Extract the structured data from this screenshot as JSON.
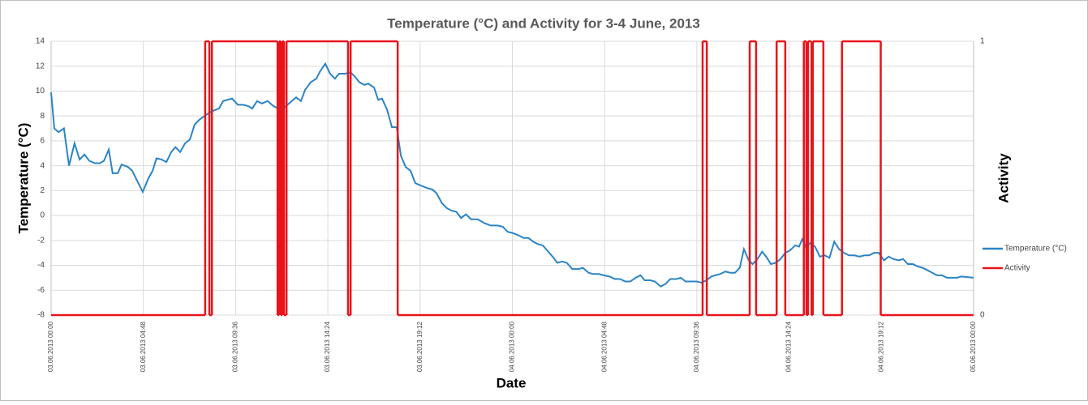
{
  "chart_data": {
    "type": "line",
    "title": "Temperature (°C) and Activity for 3-4 June, 2013",
    "xlabel": "Date",
    "ylabel": "Temperature (°C)",
    "y2label": "Activity",
    "xlim": [
      "03.06.2013 00:00",
      "05.06.2013 00:00"
    ],
    "xticks": [
      "03.06.2013 00:00",
      "03.06.2013 04:48",
      "03.06.2013 09:36",
      "03.06.2013 14:24",
      "03.06.2013 19:12",
      "04.06.2013 00:00",
      "04.06.2013 04:48",
      "04.06.2013 09:36",
      "04.06.2013 14:24",
      "04.06.2013 19:12",
      "05.06.2013 00:00"
    ],
    "ylim": [
      -8,
      14
    ],
    "yticks": [
      -8,
      -6,
      -4,
      -2,
      0,
      2,
      4,
      6,
      8,
      10,
      12,
      14
    ],
    "y2lim": [
      0,
      1
    ],
    "y2ticks": [
      0,
      1
    ],
    "grid": true,
    "legend": "right",
    "series": [
      {
        "name": "Temperature (°C)",
        "color": "#2a84c6",
        "x": [
          "03.06.2013 00:00",
          "03.06.2013 00:10",
          "03.06.2013 00:23",
          "03.06.2013 00:40",
          "03.06.2013 00:56",
          "03.06.2013 01:13",
          "03.06.2013 01:29",
          "03.06.2013 01:44",
          "03.06.2013 01:59",
          "03.06.2013 02:17",
          "03.06.2013 02:32",
          "03.06.2013 02:45",
          "03.06.2013 03:00",
          "03.06.2013 03:12",
          "03.06.2013 03:28",
          "03.06.2013 03:40",
          "03.06.2013 04:00",
          "03.06.2013 04:13",
          "03.06.2013 04:46",
          "03.06.2013 05:04",
          "03.06.2013 05:17",
          "03.06.2013 05:29",
          "03.06.2013 05:45",
          "03.06.2013 06:00",
          "03.06.2013 06:15",
          "03.06.2013 06:28",
          "03.06.2013 06:43",
          "03.06.2013 06:58",
          "03.06.2013 07:13",
          "03.06.2013 07:28",
          "03.06.2013 07:43",
          "03.06.2013 08:04",
          "03.06.2013 08:24",
          "03.06.2013 08:44",
          "03.06.2013 08:57",
          "03.06.2013 09:25",
          "03.06.2013 09:43",
          "03.06.2013 10:00",
          "03.06.2013 10:15",
          "03.06.2013 10:28",
          "03.06.2013 10:43",
          "03.06.2013 10:58",
          "03.06.2013 11:16",
          "03.06.2013 11:34",
          "03.06.2013 11:49",
          "03.06.2013 12:09",
          "03.06.2013 12:27",
          "03.06.2013 12:45",
          "03.06.2013 13:00",
          "03.06.2013 13:13",
          "03.06.2013 13:30",
          "03.06.2013 13:48",
          "03.06.2013 14:00",
          "03.06.2013 14:16",
          "03.06.2013 14:31",
          "03.06.2013 14:46",
          "03.06.2013 14:59",
          "03.06.2013 15:17",
          "03.06.2013 15:35",
          "03.06.2013 15:47",
          "03.06.2013 16:03",
          "03.06.2013 16:18",
          "03.06.2013 16:30",
          "03.06.2013 16:48",
          "03.06.2013 17:01",
          "03.06.2013 17:13",
          "03.06.2013 17:29",
          "03.06.2013 17:44",
          "03.06.2013 17:59",
          "03.06.2013 18:12",
          "03.06.2013 18:27",
          "03.06.2013 18:42",
          "03.06.2013 18:57",
          "03.06.2013 19:15",
          "03.06.2013 19:35",
          "03.06.2013 19:50",
          "03.06.2013 20:03",
          "03.06.2013 20:20",
          "03.06.2013 20:35",
          "03.06.2013 20:50",
          "03.06.2013 21:05",
          "03.06.2013 21:20",
          "03.06.2013 21:35",
          "03.06.2013 21:51",
          "03.06.2013 22:12",
          "03.06.2013 22:32",
          "03.06.2013 22:52",
          "03.06.2013 23:13",
          "03.06.2013 23:30",
          "03.06.2013 23:45",
          "04.06.2013 00:00",
          "04.06.2013 00:20",
          "04.06.2013 00:35",
          "04.06.2013 00:50",
          "04.06.2013 01:05",
          "04.06.2013 01:20",
          "04.06.2013 01:35",
          "04.06.2013 01:52",
          "04.06.2013 02:09",
          "04.06.2013 02:20",
          "04.06.2013 02:35",
          "04.06.2013 02:50",
          "04.06.2013 03:07",
          "04.06.2013 03:27",
          "04.06.2013 03:40",
          "04.06.2013 03:58",
          "04.06.2013 04:12",
          "04.06.2013 04:30",
          "04.06.2013 04:45",
          "04.06.2013 05:03",
          "04.06.2013 05:20",
          "04.06.2013 05:37",
          "04.06.2013 05:52",
          "04.06.2013 06:08",
          "04.06.2013 06:25",
          "04.06.2013 06:40",
          "04.06.2013 06:53",
          "04.06.2013 07:10",
          "04.06.2013 07:25",
          "04.06.2013 07:43",
          "04.06.2013 07:58",
          "04.06.2013 08:13",
          "04.06.2013 08:31",
          "04.06.2013 08:46",
          "04.06.2013 09:01",
          "04.06.2013 09:18",
          "04.06.2013 09:36",
          "04.06.2013 09:51",
          "04.06.2013 10:06",
          "04.06.2013 10:21",
          "04.06.2013 10:34",
          "04.06.2013 10:49",
          "04.06.2013 11:05",
          "04.06.2013 11:20",
          "04.06.2013 11:35",
          "04.06.2013 11:50",
          "04.06.2013 12:03",
          "04.06.2013 12:18",
          "04.06.2013 12:30",
          "04.06.2013 12:45",
          "04.06.2013 13:00",
          "04.06.2013 13:15",
          "04.06.2013 13:27",
          "04.06.2013 13:42",
          "04.06.2013 13:57",
          "04.06.2013 14:12",
          "04.06.2013 14:27",
          "04.06.2013 14:43",
          "04.06.2013 14:55",
          "04.06.2013 15:05",
          "04.06.2013 15:17",
          "04.06.2013 15:30",
          "04.06.2013 15:45",
          "04.06.2013 16:00",
          "04.06.2013 16:15",
          "04.06.2013 16:30",
          "04.06.2013 16:45",
          "04.06.2013 17:00",
          "04.06.2013 17:15",
          "04.06.2013 17:31",
          "04.06.2013 17:48",
          "04.06.2013 18:04",
          "04.06.2013 18:19",
          "04.06.2013 18:34",
          "04.06.2013 18:49",
          "04.06.2013 19:04",
          "04.06.2013 19:20",
          "04.06.2013 19:35",
          "04.06.2013 19:50",
          "04.06.2013 20:05",
          "04.06.2013 20:20",
          "04.06.2013 20:35",
          "04.06.2013 20:50",
          "04.06.2013 21:06",
          "04.06.2013 21:21",
          "04.06.2013 21:36",
          "04.06.2013 21:51",
          "04.06.2013 22:06",
          "04.06.2013 22:21",
          "04.06.2013 22:37",
          "04.06.2013 22:52",
          "04.06.2013 23:07",
          "04.06.2013 23:22",
          "05.06.2013 00:00"
        ],
        "values": [
          9.9,
          7.0,
          6.7,
          7.0,
          4.0,
          5.8,
          4.5,
          4.9,
          4.4,
          4.2,
          4.2,
          4.4,
          5.3,
          3.4,
          3.4,
          4.1,
          3.9,
          3.6,
          1.9,
          3.0,
          3.6,
          4.6,
          4.5,
          4.3,
          5.1,
          5.5,
          5.1,
          5.8,
          6.1,
          7.3,
          7.7,
          8.1,
          8.4,
          8.6,
          9.2,
          9.4,
          8.9,
          8.9,
          8.8,
          8.6,
          9.2,
          9.0,
          9.2,
          8.8,
          8.6,
          8.7,
          9.1,
          9.5,
          9.2,
          10.1,
          10.7,
          11.0,
          11.6,
          12.2,
          11.4,
          11.0,
          11.4,
          11.4,
          11.5,
          11.2,
          10.7,
          10.5,
          10.6,
          10.3,
          9.3,
          9.4,
          8.5,
          7.1,
          7.1,
          4.8,
          3.9,
          3.6,
          2.6,
          2.4,
          2.2,
          2.1,
          1.8,
          1.0,
          0.6,
          0.4,
          0.3,
          -0.2,
          0.1,
          -0.3,
          -0.3,
          -0.6,
          -0.8,
          -0.8,
          -0.9,
          -1.3,
          -1.4,
          -1.6,
          -1.8,
          -1.8,
          -2.1,
          -2.3,
          -2.4,
          -2.9,
          -3.4,
          -3.8,
          -3.7,
          -3.8,
          -4.3,
          -4.3,
          -4.2,
          -4.6,
          -4.7,
          -4.7,
          -4.8,
          -4.9,
          -5.1,
          -5.1,
          -5.3,
          -5.3,
          -5.0,
          -4.8,
          -5.2,
          -5.2,
          -5.3,
          -5.7,
          -5.5,
          -5.1,
          -5.1,
          -5.0,
          -5.3,
          -5.3,
          -5.3,
          -5.4,
          -5.2,
          -4.9,
          -4.8,
          -4.7,
          -4.5,
          -4.6,
          -4.6,
          -4.2,
          -2.7,
          -3.6,
          -3.9,
          -3.5,
          -2.9,
          -3.4,
          -3.9,
          -3.8,
          -3.5,
          -3.0,
          -2.8,
          -2.4,
          -2.5,
          -1.9,
          -2.6,
          -2.2,
          -2.5,
          -3.3,
          -3.2,
          -3.4,
          -2.1,
          -2.7,
          -3.0,
          -3.2,
          -3.2,
          -3.3,
          -3.2,
          -3.2,
          -3.0,
          -3.0,
          -3.6,
          -3.3,
          -3.5,
          -3.6,
          -3.5,
          -3.9,
          -3.9,
          -4.1,
          -4.2,
          -4.4,
          -4.6,
          -4.8,
          -4.8,
          -5.0,
          -5.0,
          -5.0,
          -4.9,
          -5.0
        ]
      },
      {
        "name": "Activity",
        "color": "#e8141b",
        "axis": "y2",
        "step": true,
        "x": [
          "03.06.2013 00:00",
          "03.06.2013 08:01",
          "03.06.2013 08:14",
          "03.06.2013 08:22",
          "03.06.2013 11:47",
          "03.06.2013 11:52",
          "03.06.2013 11:57",
          "03.06.2013 12:02",
          "03.06.2013 12:07",
          "03.06.2013 12:15",
          "03.06.2013 15:27",
          "03.06.2013 15:35",
          "03.06.2013 18:02",
          "04.06.2013 09:54",
          "04.06.2013 10:07",
          "04.06.2013 12:21",
          "04.06.2013 12:41",
          "04.06.2013 13:45",
          "04.06.2013 14:12",
          "04.06.2013 15:10",
          "04.06.2013 15:18",
          "04.06.2013 15:23",
          "04.06.2013 15:34",
          "04.06.2013 15:38",
          "04.06.2013 16:11",
          "04.06.2013 17:09",
          "04.06.2013 19:10",
          "05.06.2013 00:00"
        ],
        "values": [
          0,
          1,
          0,
          1,
          0,
          1,
          0,
          1,
          0,
          1,
          0,
          1,
          0,
          1,
          0,
          1,
          0,
          1,
          0,
          1,
          0,
          1,
          0,
          1,
          0,
          1,
          0,
          0
        ]
      }
    ]
  }
}
